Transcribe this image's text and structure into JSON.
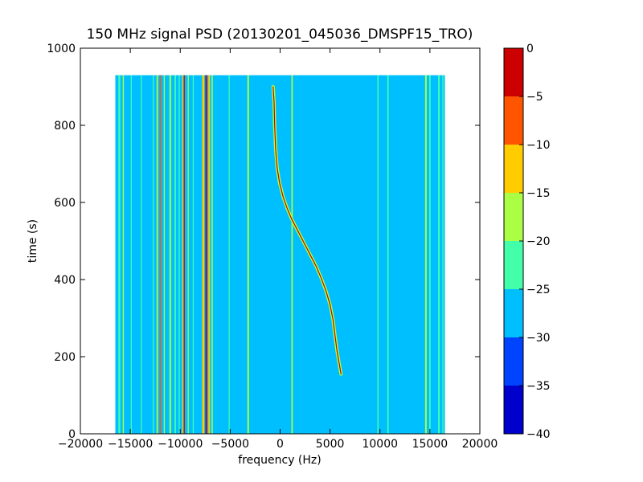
{
  "chart_data": {
    "type": "heatmap",
    "title": "150 MHz signal PSD (20130201_045036_DMSPF15_TRO)",
    "xlabel": "frequency (Hz)",
    "ylabel": "time (s)",
    "xlim": [
      -20000,
      20000
    ],
    "ylim": [
      0,
      1000
    ],
    "xticks": [
      -20000,
      -15000,
      -10000,
      -5000,
      0,
      5000,
      10000,
      15000,
      20000
    ],
    "yticks": [
      0,
      200,
      400,
      600,
      800,
      1000
    ],
    "grid": false,
    "data_extent": {
      "x": [
        -16500,
        16500
      ],
      "y": [
        0,
        930
      ]
    },
    "background_level": -27.5,
    "colorbar": {
      "levels": [
        -40,
        -35,
        -30,
        -25,
        -20,
        -15,
        -10,
        -5,
        0
      ],
      "ticks": [
        "0",
        "−5",
        "−10",
        "−15",
        "−20",
        "−25",
        "−30",
        "−35",
        "−40"
      ],
      "colors": [
        "#0000cc",
        "#0044ff",
        "#00bfff",
        "#44ffaa",
        "#aaff44",
        "#ffcc00",
        "#ff5500",
        "#cc0000"
      ]
    },
    "vertical_lines": [
      {
        "f": -16100,
        "width": 180,
        "level": -22.5
      },
      {
        "f": -15700,
        "width": 120,
        "level": -17.5
      },
      {
        "f": -14900,
        "width": 100,
        "level": -22.5
      },
      {
        "f": -13900,
        "width": 100,
        "level": -22.5
      },
      {
        "f": -12700,
        "width": 100,
        "level": -22.5
      },
      {
        "f": -12300,
        "width": 140,
        "level": -17.5
      },
      {
        "f": -12000,
        "width": 140,
        "level": -7.5
      },
      {
        "f": -11600,
        "width": 100,
        "level": -17.5
      },
      {
        "f": -11000,
        "width": 160,
        "level": -17.5
      },
      {
        "f": -10500,
        "width": 140,
        "level": -22.5
      },
      {
        "f": -10100,
        "width": 100,
        "level": -22.5
      },
      {
        "f": -9750,
        "width": 120,
        "level": -12.5
      },
      {
        "f": -9600,
        "width": 100,
        "level": -2.5
      },
      {
        "f": -9200,
        "width": 100,
        "level": -17.5
      },
      {
        "f": -8700,
        "width": 100,
        "level": -22.5
      },
      {
        "f": -7700,
        "width": 200,
        "level": -12.5
      },
      {
        "f": -7400,
        "width": 180,
        "level": -2.5
      },
      {
        "f": -7100,
        "width": 160,
        "level": -12.5
      },
      {
        "f": -6800,
        "width": 120,
        "level": -17.5
      },
      {
        "f": -5100,
        "width": 100,
        "level": -22.5
      },
      {
        "f": -3200,
        "width": 160,
        "level": -17.5
      },
      {
        "f": 1200,
        "width": 140,
        "level": -17.5
      },
      {
        "f": 9800,
        "width": 120,
        "level": -22.5
      },
      {
        "f": 10800,
        "width": 140,
        "level": -22.5
      },
      {
        "f": 14600,
        "width": 160,
        "level": -17.5
      },
      {
        "f": 15000,
        "width": 140,
        "level": -22.5
      },
      {
        "f": 15900,
        "width": 160,
        "level": -22.5
      },
      {
        "f": 16300,
        "width": 100,
        "level": -22.5
      }
    ],
    "doppler_trace": {
      "level": -17.5,
      "core_level": -2.5,
      "points": [
        [
          -700,
          900
        ],
        [
          -600,
          860
        ],
        [
          -550,
          800
        ],
        [
          -450,
          740
        ],
        [
          -300,
          690
        ],
        [
          -50,
          650
        ],
        [
          300,
          615
        ],
        [
          700,
          585
        ],
        [
          1100,
          560
        ],
        [
          1600,
          535
        ],
        [
          2100,
          510
        ],
        [
          2600,
          485
        ],
        [
          3100,
          460
        ],
        [
          3600,
          435
        ],
        [
          4100,
          405
        ],
        [
          4600,
          370
        ],
        [
          5000,
          335
        ],
        [
          5300,
          295
        ],
        [
          5500,
          255
        ],
        [
          5700,
          215
        ],
        [
          5900,
          185
        ],
        [
          6100,
          155
        ]
      ]
    }
  }
}
